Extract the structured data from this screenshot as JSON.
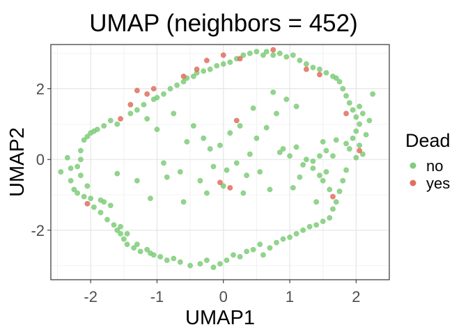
{
  "chart_data": {
    "type": "scatter",
    "title": "UMAP (neighbors = 452)",
    "xlabel": "UMAP1",
    "ylabel": "UMAP2",
    "xlim": [
      -2.6,
      2.5
    ],
    "ylim": [
      -3.4,
      3.25
    ],
    "x_ticks": [
      -2,
      -1,
      0,
      1,
      2
    ],
    "x_tick_labels": [
      "-2",
      "-1",
      "0",
      "1",
      "2"
    ],
    "y_ticks": [
      -2,
      0,
      2
    ],
    "y_tick_labels": [
      "-2",
      "0",
      "2"
    ],
    "grid": true,
    "legend": {
      "title": "Dead",
      "position": "right"
    },
    "series": [
      {
        "name": "no",
        "color": "#7fcc7a",
        "points": [
          [
            -2.45,
            -0.35
          ],
          [
            -2.35,
            0.05
          ],
          [
            -2.3,
            -0.25
          ],
          [
            -2.3,
            -0.6
          ],
          [
            -2.25,
            -0.85
          ],
          [
            -2.2,
            -0.95
          ],
          [
            -2.2,
            -0.2
          ],
          [
            -2.15,
            -0.45
          ],
          [
            -2.15,
            0.0
          ],
          [
            -2.15,
            0.25
          ],
          [
            -2.1,
            0.55
          ],
          [
            -2.1,
            -1.05
          ],
          [
            -2.05,
            -0.75
          ],
          [
            -2.05,
            0.65
          ],
          [
            -2.0,
            0.75
          ],
          [
            -2.0,
            -1.1
          ],
          [
            -1.95,
            0.8
          ],
          [
            -1.95,
            -1.35
          ],
          [
            -1.9,
            0.85
          ],
          [
            -1.85,
            -1.15
          ],
          [
            -1.85,
            -1.5
          ],
          [
            -1.8,
            0.95
          ],
          [
            -1.8,
            -1.2
          ],
          [
            -1.75,
            -1.7
          ],
          [
            -1.7,
            1.1
          ],
          [
            -1.7,
            -1.3
          ],
          [
            -1.65,
            -1.85
          ],
          [
            -1.6,
            -2.0
          ],
          [
            -1.6,
            1.0
          ],
          [
            -1.55,
            -2.1
          ],
          [
            -1.55,
            -1.9
          ],
          [
            -1.5,
            -2.25
          ],
          [
            -1.45,
            -2.4
          ],
          [
            -1.45,
            -2.1
          ],
          [
            -1.4,
            1.3
          ],
          [
            -1.35,
            -2.5
          ],
          [
            -1.3,
            1.4
          ],
          [
            -1.3,
            -2.4
          ],
          [
            -1.25,
            -2.6
          ],
          [
            -1.2,
            1.55
          ],
          [
            -1.15,
            -2.55
          ],
          [
            -1.1,
            -2.65
          ],
          [
            -1.05,
            1.7
          ],
          [
            -1.05,
            -2.7
          ],
          [
            -1.0,
            1.75
          ],
          [
            -0.95,
            -2.75
          ],
          [
            -0.9,
            1.85
          ],
          [
            -0.85,
            -2.85
          ],
          [
            -0.8,
            2.0
          ],
          [
            -0.75,
            -2.8
          ],
          [
            -0.7,
            2.1
          ],
          [
            -0.65,
            -2.9
          ],
          [
            -0.6,
            2.2
          ],
          [
            -0.55,
            2.3
          ],
          [
            -0.5,
            -3.0
          ],
          [
            -0.45,
            2.35
          ],
          [
            -0.4,
            2.45
          ],
          [
            -0.35,
            -2.95
          ],
          [
            -0.3,
            2.5
          ],
          [
            -0.25,
            -2.85
          ],
          [
            -0.2,
            2.55
          ],
          [
            -0.15,
            -3.05
          ],
          [
            -0.1,
            2.65
          ],
          [
            -0.05,
            -2.95
          ],
          [
            0.0,
            2.7
          ],
          [
            0.05,
            -2.85
          ],
          [
            0.1,
            2.75
          ],
          [
            0.15,
            -2.7
          ],
          [
            0.2,
            2.85
          ],
          [
            0.25,
            -2.75
          ],
          [
            0.3,
            2.95
          ],
          [
            0.35,
            -2.6
          ],
          [
            0.4,
            3.0
          ],
          [
            0.45,
            -2.55
          ],
          [
            0.5,
            3.05
          ],
          [
            0.55,
            -2.4
          ],
          [
            0.6,
            2.95
          ],
          [
            0.6,
            -2.7
          ],
          [
            0.65,
            3.05
          ],
          [
            0.7,
            -2.5
          ],
          [
            0.75,
            2.95
          ],
          [
            0.8,
            -2.35
          ],
          [
            0.85,
            3.0
          ],
          [
            0.9,
            -2.25
          ],
          [
            0.95,
            2.9
          ],
          [
            1.0,
            -2.2
          ],
          [
            1.05,
            2.95
          ],
          [
            1.1,
            -2.1
          ],
          [
            1.15,
            2.8
          ],
          [
            1.2,
            -2.0
          ],
          [
            1.25,
            2.7
          ],
          [
            1.3,
            -1.9
          ],
          [
            1.35,
            2.6
          ],
          [
            1.4,
            -1.85
          ],
          [
            1.45,
            2.55
          ],
          [
            1.5,
            -1.75
          ],
          [
            1.55,
            2.45
          ],
          [
            1.6,
            -1.65
          ],
          [
            1.65,
            2.35
          ],
          [
            1.65,
            -1.4
          ],
          [
            1.7,
            2.3
          ],
          [
            1.7,
            -1.2
          ],
          [
            1.75,
            2.2
          ],
          [
            1.75,
            -0.9
          ],
          [
            1.8,
            2.0
          ],
          [
            1.8,
            -0.6
          ],
          [
            1.85,
            1.8
          ],
          [
            1.85,
            -0.3
          ],
          [
            1.9,
            1.6
          ],
          [
            1.9,
            0.3
          ],
          [
            1.95,
            1.4
          ],
          [
            1.95,
            0.6
          ],
          [
            2.0,
            1.2
          ],
          [
            2.0,
            0.8
          ],
          [
            2.05,
            1.0
          ],
          [
            2.05,
            0.4
          ],
          [
            2.1,
            1.3
          ],
          [
            2.1,
            0.15
          ],
          [
            2.15,
            0.7
          ],
          [
            2.2,
            1.1
          ],
          [
            2.25,
            1.85
          ],
          [
            2.05,
            1.5
          ],
          [
            2.0,
            0.05
          ],
          [
            1.85,
            0.45
          ],
          [
            1.7,
            0.55
          ],
          [
            1.55,
            0.25
          ],
          [
            1.45,
            0.1
          ],
          [
            1.35,
            -0.05
          ],
          [
            1.25,
            0.0
          ],
          [
            1.5,
            -0.6
          ],
          [
            1.55,
            -0.35
          ],
          [
            1.6,
            -0.85
          ],
          [
            1.45,
            -0.45
          ],
          [
            1.35,
            -0.25
          ],
          [
            1.2,
            -0.15
          ],
          [
            1.1,
            0.35
          ],
          [
            1.15,
            -0.5
          ],
          [
            1.0,
            0.1
          ],
          [
            0.9,
            0.3
          ],
          [
            -1.6,
            -0.4
          ],
          [
            -1.3,
            -0.6
          ],
          [
            -1.15,
            1.15
          ],
          [
            -1.0,
            0.85
          ],
          [
            -0.9,
            -0.1
          ],
          [
            -0.85,
            -0.5
          ],
          [
            -0.65,
            -0.35
          ],
          [
            -0.55,
            0.5
          ],
          [
            -0.45,
            0.95
          ],
          [
            -0.35,
            -0.6
          ],
          [
            -0.3,
            0.6
          ],
          [
            -0.2,
            0.3
          ],
          [
            -0.15,
            -0.2
          ],
          [
            -0.05,
            0.4
          ],
          [
            0.05,
            -0.3
          ],
          [
            0.1,
            0.75
          ],
          [
            0.2,
            -0.1
          ],
          [
            0.25,
            0.95
          ],
          [
            0.35,
            -0.45
          ],
          [
            0.4,
            0.15
          ],
          [
            0.5,
            0.6
          ],
          [
            0.55,
            -0.35
          ],
          [
            0.65,
            0.9
          ],
          [
            0.7,
            -0.85
          ],
          [
            0.8,
            1.3
          ],
          [
            0.85,
            0.2
          ],
          [
            0.95,
            1.7
          ],
          [
            1.05,
            -0.8
          ],
          [
            1.1,
            1.5
          ],
          [
            0.3,
            -0.95
          ],
          [
            -0.6,
            -1.2
          ],
          [
            -1.1,
            -1.1
          ],
          [
            0.0,
            -0.75
          ],
          [
            -0.25,
            -0.95
          ],
          [
            0.45,
            1.45
          ],
          [
            0.75,
            1.9
          ],
          [
            -0.75,
            1.3
          ],
          [
            1.5,
            0.5
          ],
          [
            1.65,
            0.1
          ],
          [
            1.4,
            -1.2
          ]
        ]
      },
      {
        "name": "yes",
        "color": "#e0705e",
        "points": [
          [
            -2.05,
            -1.25
          ],
          [
            -1.55,
            1.15
          ],
          [
            -1.4,
            1.55
          ],
          [
            -1.3,
            1.95
          ],
          [
            -1.05,
            2.0
          ],
          [
            -0.6,
            2.35
          ],
          [
            -0.4,
            2.55
          ],
          [
            -0.25,
            2.8
          ],
          [
            0.0,
            2.95
          ],
          [
            0.25,
            2.85
          ],
          [
            0.75,
            3.1
          ],
          [
            1.25,
            2.55
          ],
          [
            1.45,
            2.4
          ],
          [
            1.65,
            -1.05
          ],
          [
            1.85,
            1.3
          ],
          [
            2.05,
            0.25
          ],
          [
            0.2,
            1.1
          ],
          [
            -0.05,
            -0.65
          ],
          [
            0.1,
            -0.8
          ],
          [
            -1.15,
            1.85
          ]
        ]
      }
    ]
  }
}
